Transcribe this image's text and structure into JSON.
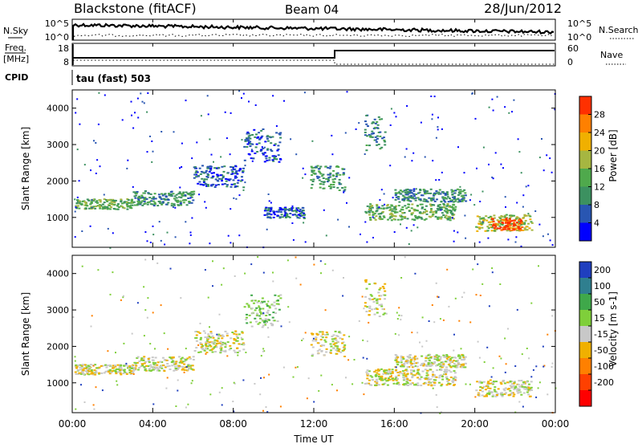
{
  "header": {
    "station": "Blackstone (fitACF)",
    "beam": "Beam 04",
    "date": "28/Jun/2012"
  },
  "top_panels": {
    "nsky_label": "N.Sky",
    "nsearch_label": "N.Search",
    "freq_label_line1": "Freq.",
    "freq_label_line2": "[MHz]",
    "nave_label": "Nave",
    "cpid_label": "CPID",
    "cpid_text": "tau (fast) 503",
    "noise_left_ticks": [
      "10^5",
      "10^0"
    ],
    "noise_right_ticks": [
      "10^5",
      "10^0"
    ],
    "freq_left_ticks": [
      "18",
      "8"
    ],
    "freq_right_ticks": [
      "60",
      "0"
    ]
  },
  "chart_data": [
    {
      "type": "heatmap",
      "name": "power",
      "ylabel": "Slant Range [km]",
      "xlabel": "Time UT",
      "x_range_hours": [
        0,
        24
      ],
      "ylim": [
        180,
        4500
      ],
      "x_ticks": [
        "00:00",
        "04:00",
        "08:00",
        "12:00",
        "16:00",
        "20:00",
        "00:00"
      ],
      "y_ticks": [
        1000,
        2000,
        3000,
        4000
      ],
      "colorbar": {
        "label": "Power [dB]",
        "tick_labels": [
          "4",
          "8",
          "12",
          "16",
          "20",
          "24",
          "28"
        ],
        "colors": [
          "#0000ff",
          "#2956b2",
          "#3c9160",
          "#4fa94c",
          "#a6b641",
          "#f0b000",
          "#ff8000",
          "#ff3000"
        ]
      },
      "echo_bands": [
        {
          "t0": 0.1,
          "t1": 3.0,
          "r0": 1200,
          "r1": 1480,
          "level": 3
        },
        {
          "t0": 3.0,
          "t1": 6.0,
          "r0": 1300,
          "r1": 1700,
          "level": 2
        },
        {
          "t0": 6.0,
          "t1": 8.5,
          "r0": 1800,
          "r1": 2400,
          "level": 1
        },
        {
          "t0": 8.5,
          "t1": 10.3,
          "r0": 2500,
          "r1": 3400,
          "level": 1
        },
        {
          "t0": 9.5,
          "t1": 11.5,
          "r0": 950,
          "r1": 1250,
          "level": 1
        },
        {
          "t0": 11.8,
          "t1": 13.5,
          "r0": 1700,
          "r1": 2400,
          "level": 2
        },
        {
          "t0": 14.5,
          "t1": 15.5,
          "r0": 2800,
          "r1": 3800,
          "level": 2
        },
        {
          "t0": 14.5,
          "t1": 19.0,
          "r0": 900,
          "r1": 1350,
          "level": 3
        },
        {
          "t0": 16.0,
          "t1": 19.5,
          "r0": 1400,
          "r1": 1750,
          "level": 2
        },
        {
          "t0": 20.0,
          "t1": 22.8,
          "r0": 600,
          "r1": 1050,
          "level": 4
        },
        {
          "t0": 20.8,
          "t1": 22.3,
          "r0": 620,
          "r1": 950,
          "level": 7
        }
      ]
    },
    {
      "type": "heatmap",
      "name": "velocity",
      "ylabel": "Slant Range [km]",
      "xlabel": "Time UT",
      "x_range_hours": [
        0,
        24
      ],
      "ylim": [
        180,
        4500
      ],
      "x_ticks": [
        "00:00",
        "04:00",
        "08:00",
        "12:00",
        "16:00",
        "20:00",
        "00:00"
      ],
      "y_ticks": [
        1000,
        2000,
        3000,
        4000
      ],
      "colorbar": {
        "label": "Velocity [m s-1]",
        "tick_labels": [
          "200",
          "100",
          "50",
          "15",
          "-15",
          "-50",
          "-100",
          "-200"
        ],
        "colors": [
          "#1f3fbf",
          "#2f7f8f",
          "#3fa84a",
          "#7fcf3a",
          "#c8c8c8",
          "#f0b000",
          "#ff8000",
          "#ff4000",
          "#ff0000"
        ]
      },
      "echo_bands": [
        {
          "t0": 0.1,
          "t1": 3.0,
          "r0": 1200,
          "r1": 1480,
          "level": 4
        },
        {
          "t0": 3.0,
          "t1": 6.0,
          "r0": 1300,
          "r1": 1700,
          "level": 4
        },
        {
          "t0": 6.0,
          "t1": 8.5,
          "r0": 1800,
          "r1": 2400,
          "level": 4
        },
        {
          "t0": 8.5,
          "t1": 10.3,
          "r0": 2500,
          "r1": 3400,
          "level": 3
        },
        {
          "t0": 11.8,
          "t1": 13.5,
          "r0": 1700,
          "r1": 2400,
          "level": 4
        },
        {
          "t0": 14.5,
          "t1": 15.5,
          "r0": 2800,
          "r1": 3800,
          "level": 4
        },
        {
          "t0": 14.5,
          "t1": 19.0,
          "r0": 900,
          "r1": 1350,
          "level": 4
        },
        {
          "t0": 16.0,
          "t1": 19.5,
          "r0": 1400,
          "r1": 1750,
          "level": 4
        },
        {
          "t0": 20.0,
          "t1": 22.8,
          "r0": 600,
          "r1": 1050,
          "level": 4
        }
      ]
    }
  ]
}
